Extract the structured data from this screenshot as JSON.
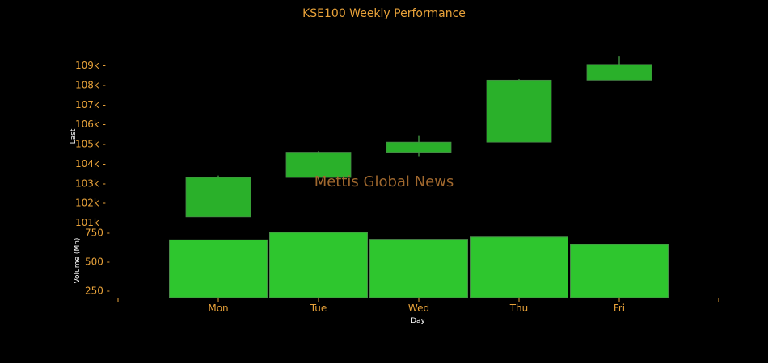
{
  "colors": {
    "background": "#000000",
    "text_orange": "#e8a23a",
    "candle_up": "#2ab02a",
    "wick": "#5ad05a",
    "volume_bar": "#2ec62e",
    "volume_edge": "#4a8a4a",
    "axis_label": "#ffffff",
    "watermark": "#a0682e"
  },
  "chart_data": {
    "type": "candlestick",
    "title": "KSE100 Weekly Performance",
    "watermark": "Mettis Global News",
    "categories": [
      "Mon",
      "Tue",
      "Wed",
      "Thu",
      "Fri"
    ],
    "xlabel": "Day",
    "price": {
      "ylabel": "Last",
      "ylim": [
        100800,
        109700
      ],
      "ticks": [
        101000,
        102000,
        103000,
        104000,
        105000,
        106000,
        107000,
        108000,
        109000
      ],
      "tick_labels": [
        "101k",
        "102k",
        "103k",
        "104k",
        "105k",
        "106k",
        "107k",
        "108k",
        "109k"
      ],
      "candles": [
        {
          "open": 101300,
          "close": 103300,
          "high": 103400,
          "low": 101300
        },
        {
          "open": 103300,
          "close": 104550,
          "high": 104650,
          "low": 103300
        },
        {
          "open": 104550,
          "close": 105100,
          "high": 105450,
          "low": 104350
        },
        {
          "open": 105100,
          "close": 108250,
          "high": 108300,
          "low": 105100
        },
        {
          "open": 108250,
          "close": 109050,
          "high": 109450,
          "low": 108250
        }
      ]
    },
    "volume": {
      "ylabel": "Volume (Mn)",
      "ylim": [
        190,
        790
      ],
      "ticks": [
        250,
        500,
        750
      ],
      "tick_labels": [
        "250",
        "500",
        "750"
      ],
      "values": [
        690,
        755,
        695,
        715,
        650
      ]
    }
  }
}
